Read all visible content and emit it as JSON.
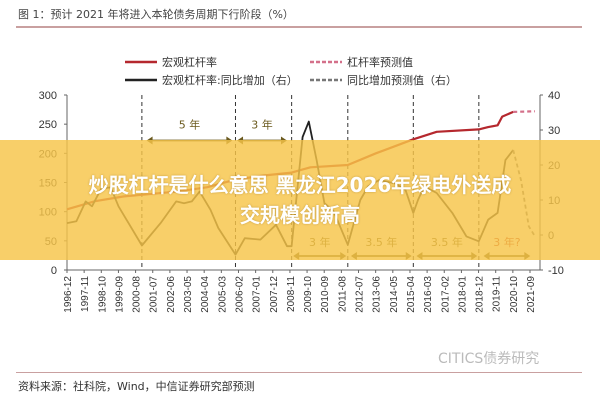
{
  "title": "图 1：预计 2021 年将进入本轮债务周期下行阶段（%）",
  "source": "资料来源：社科院，Wind，中信证券研究部预测",
  "watermark": "CITICS债券研究",
  "banner": {
    "line1": "炒股杠杆是什么意思 黑龙江2026年绿电外送成",
    "line2": "交规模创新高"
  },
  "colors": {
    "leverage": "#b5282e",
    "yoy": "#222222",
    "forecast_leverage": "#d4708a",
    "forecast_yoy": "#777777",
    "arrow": "#6b5a1e",
    "banner": "#f6c448"
  },
  "chart_data": {
    "type": "line",
    "title": "图 1：预计 2021 年将进入本轮债务周期下行阶段（%）",
    "x_ticks": [
      "1996-12",
      "1997-11",
      "1998-10",
      "1999-09",
      "2000-08",
      "2001-07",
      "2002-06",
      "2003-05",
      "2004-04",
      "2005-03",
      "2006-02",
      "2007-01",
      "2007-12",
      "2008-11",
      "2009-10",
      "2010-09",
      "2011-08",
      "2012-07",
      "2013-06",
      "2014-05",
      "2015-04",
      "2016-03",
      "2017-02",
      "2018-01",
      "2018-12",
      "2019-11",
      "2020-10",
      "2021-09"
    ],
    "y_left": {
      "ticks": [
        0,
        50,
        100,
        150,
        200,
        250,
        300
      ],
      "range": [
        0,
        300
      ]
    },
    "y_right": {
      "ticks": [
        -10,
        0,
        10,
        20,
        30,
        40
      ],
      "range": [
        -10,
        40
      ]
    },
    "grid": false,
    "legend_placement": "top",
    "series": [
      {
        "name": "宏观杠杆率",
        "axis": "left",
        "style": "solid",
        "x": [
          "1996-12",
          "1998-06",
          "1999-12",
          "2000-12",
          "2002-12",
          "2004-06",
          "2005-12",
          "2007-06",
          "2008-12",
          "2009-12",
          "2011-12",
          "2013-06",
          "2015-06",
          "2016-09",
          "2018-12",
          "2019-06",
          "2019-12",
          "2020-03",
          "2020-10"
        ],
        "y": [
          104,
          118,
          126,
          129,
          135,
          142,
          155,
          162,
          167,
          176,
          180,
          200,
          224,
          237,
          241,
          245,
          248,
          263,
          271
        ]
      },
      {
        "name": "杠杆率预测值",
        "axis": "left",
        "style": "dashed",
        "x": [
          "2020-10",
          "2021-12"
        ],
        "y": [
          271,
          272
        ]
      },
      {
        "name": "宏观杠杆率:同比增加（右）",
        "axis": "right",
        "style": "solid",
        "x": [
          "1996-12",
          "1997-06",
          "1997-12",
          "1998-04",
          "1998-10",
          "1999-04",
          "1999-09",
          "2000-12",
          "2001-12",
          "2002-10",
          "2003-03",
          "2003-08",
          "2004-01",
          "2004-08",
          "2005-01",
          "2005-12",
          "2006-06",
          "2007-04",
          "2008-02",
          "2008-09",
          "2008-12",
          "2009-07",
          "2009-11",
          "2010-04",
          "2010-09",
          "2011-03",
          "2011-12",
          "2012-08",
          "2013-01",
          "2013-08",
          "2014-06",
          "2015-01",
          "2015-06",
          "2015-09",
          "2016-01",
          "2016-09",
          "2017-07",
          "2018-04",
          "2018-12",
          "2019-06",
          "2019-12",
          "2020-05",
          "2020-10"
        ],
        "y": [
          3.4,
          3.9,
          9.6,
          8.2,
          13.3,
          13.6,
          8.2,
          -3,
          3.4,
          9.6,
          9.1,
          9.6,
          12.4,
          7.2,
          2,
          -5.6,
          -0.9,
          -1.3,
          2.9,
          -3.2,
          -3.2,
          28,
          32.4,
          21.4,
          9.1,
          6.7,
          -2.8,
          10,
          13.9,
          15.7,
          14.8,
          12.9,
          6.3,
          10,
          13.9,
          12,
          6.3,
          -0.4,
          -1.8,
          4.4,
          6.3,
          21.4,
          24.3
        ]
      },
      {
        "name": "同比增加预测值（右）",
        "axis": "right",
        "style": "dashed",
        "x": [
          "2020-10",
          "2021-03",
          "2021-08",
          "2021-12"
        ],
        "y": [
          24.3,
          15.7,
          2.5,
          -0.4
        ]
      }
    ],
    "cycle_lines": [
      "2000-12",
      "2005-12",
      "2008-12",
      "2011-12",
      "2015-06",
      "2018-12"
    ],
    "annotations": [
      {
        "label": "5 年",
        "from": "2001-03",
        "to": "2005-10",
        "position": "upper"
      },
      {
        "label": "3 年",
        "from": "2006-01",
        "to": "2008-09",
        "position": "upper"
      },
      {
        "label": "3 年",
        "from": "2009-01",
        "to": "2011-11",
        "position": "lower"
      },
      {
        "label": "3.5 年",
        "from": "2012-02",
        "to": "2015-05",
        "position": "lower"
      },
      {
        "label": "3.5 年",
        "from": "2015-08",
        "to": "2018-11",
        "position": "lower"
      },
      {
        "label": "3 年?",
        "from": "2019-03",
        "to": "2021-09",
        "position": "lower"
      }
    ]
  }
}
